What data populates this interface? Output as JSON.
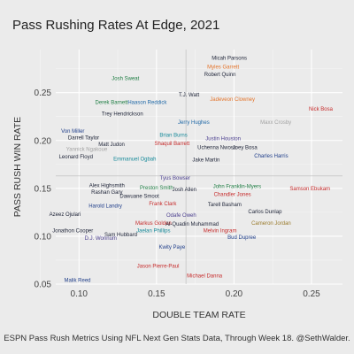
{
  "title": "Pass Rushing Rates At Edge, 2021",
  "caption": "ESPN Pass Rush Metrics Using NFL Next Gen Stats Data, Through Week 18. @SethWalder.",
  "chart_data": {
    "type": "scatter",
    "title": "Pass Rushing Rates At Edge, 2021",
    "xlabel": "DOUBLE TEAM RATE",
    "ylabel": "PASS RUSH WIN RATE",
    "xlim": [
      0.085,
      0.27
    ],
    "ylim": [
      0.05,
      0.295
    ],
    "x_ticks": [
      0.1,
      0.15,
      0.2,
      0.25
    ],
    "x_tick_labels": [
      "0.10",
      "0.15",
      "0.20",
      "0.25"
    ],
    "y_ticks": [
      0.05,
      0.1,
      0.15,
      0.2,
      0.25
    ],
    "y_tick_labels": [
      "0.05",
      "0.10",
      "0.15",
      "0.20",
      "0.25"
    ],
    "grid": true,
    "reference_lines": {
      "x": 0.169,
      "y": 0.163
    },
    "team_colors": {
      "dark": "#1c2236",
      "green": "#1e7d43",
      "blue": "#1d67a6",
      "red": "#c62a2a",
      "orange": "#e4742b",
      "purple": "#4b3f8f",
      "teal": "#178a9a",
      "gray": "#a3a3a3",
      "gold": "#9a7b2c",
      "navy": "#1f3e8a"
    },
    "points": [
      {
        "name": "Micah Parsons",
        "x": 0.197,
        "y": 0.286,
        "color": "#1c2236"
      },
      {
        "name": "Myles Garrett",
        "x": 0.193,
        "y": 0.277,
        "color": "#e4742b"
      },
      {
        "name": "Robert Quinn",
        "x": 0.191,
        "y": 0.269,
        "color": "#1c2236"
      },
      {
        "name": "Josh Sweat",
        "x": 0.13,
        "y": 0.265,
        "color": "#1e7d43"
      },
      {
        "name": "T.J. Watt",
        "x": 0.171,
        "y": 0.248,
        "color": "#1c2236"
      },
      {
        "name": "Jadeveon Clowney",
        "x": 0.199,
        "y": 0.243,
        "color": "#e4742b"
      },
      {
        "name": "Derek Barnett",
        "x": 0.121,
        "y": 0.24,
        "color": "#1e7d43"
      },
      {
        "name": "Haason Reddick",
        "x": 0.144,
        "y": 0.24,
        "color": "#1d67a6"
      },
      {
        "name": "Nick Bosa",
        "x": 0.256,
        "y": 0.233,
        "color": "#c62a2a"
      },
      {
        "name": "Trey Hendrickson",
        "x": 0.128,
        "y": 0.228,
        "color": "#1c2236"
      },
      {
        "name": "Jerry Hughes",
        "x": 0.174,
        "y": 0.219,
        "color": "#1d67a6"
      },
      {
        "name": "Maxx Crosby",
        "x": 0.227,
        "y": 0.219,
        "color": "#a3a3a3"
      },
      {
        "name": "Von Miller",
        "x": 0.096,
        "y": 0.21,
        "color": "#1f3e8a"
      },
      {
        "name": "Brian Burns",
        "x": 0.161,
        "y": 0.206,
        "color": "#178a9a"
      },
      {
        "name": "Darrell Taylor",
        "x": 0.103,
        "y": 0.203,
        "color": "#1c2236"
      },
      {
        "name": "Justin Houston",
        "x": 0.193,
        "y": 0.202,
        "color": "#4b3f8f"
      },
      {
        "name": "Shaquil Barrett",
        "x": 0.16,
        "y": 0.197,
        "color": "#c62a2a"
      },
      {
        "name": "Matt Judon",
        "x": 0.121,
        "y": 0.196,
        "color": "#1c2236"
      },
      {
        "name": "Uchenna Nwosu",
        "x": 0.189,
        "y": 0.193,
        "color": "#1c2236"
      },
      {
        "name": "Joey Bosa",
        "x": 0.207,
        "y": 0.193,
        "color": "#1c2236"
      },
      {
        "name": "Yannick Ngakoue",
        "x": 0.105,
        "y": 0.191,
        "color": "#a3a3a3"
      },
      {
        "name": "Charles Harris",
        "x": 0.224,
        "y": 0.184,
        "color": "#1f3e8a"
      },
      {
        "name": "Leonard Floyd",
        "x": 0.098,
        "y": 0.183,
        "color": "#1c2236"
      },
      {
        "name": "Emmanuel Ogbah",
        "x": 0.136,
        "y": 0.181,
        "color": "#178a9a"
      },
      {
        "name": "Jake Martin",
        "x": 0.182,
        "y": 0.18,
        "color": "#1c2236"
      },
      {
        "name": "Tyus Bowser",
        "x": 0.162,
        "y": 0.161,
        "color": "#4b3f8f"
      },
      {
        "name": "Alex Highsmith",
        "x": 0.118,
        "y": 0.153,
        "color": "#1c2236"
      },
      {
        "name": "Preston Smith",
        "x": 0.15,
        "y": 0.151,
        "color": "#1e7d43"
      },
      {
        "name": "John Franklin-Myers",
        "x": 0.202,
        "y": 0.152,
        "color": "#1e7d43"
      },
      {
        "name": "Samson Ebukam",
        "x": 0.249,
        "y": 0.15,
        "color": "#c62a2a"
      },
      {
        "name": "Josh Allen",
        "x": 0.168,
        "y": 0.149,
        "color": "#1c2236"
      },
      {
        "name": "Rashan Gary",
        "x": 0.118,
        "y": 0.146,
        "color": "#1c2236"
      },
      {
        "name": "Chandler Jones",
        "x": 0.199,
        "y": 0.144,
        "color": "#c62a2a"
      },
      {
        "name": "Dawuane Smoot",
        "x": 0.139,
        "y": 0.142,
        "color": "#1c2236"
      },
      {
        "name": "Frank Clark",
        "x": 0.154,
        "y": 0.134,
        "color": "#c62a2a"
      },
      {
        "name": "Tarell Basham",
        "x": 0.194,
        "y": 0.133,
        "color": "#1c2236"
      },
      {
        "name": "Harold Landry",
        "x": 0.117,
        "y": 0.132,
        "color": "#1f3e8a"
      },
      {
        "name": "Carlos Dunlap",
        "x": 0.22,
        "y": 0.126,
        "color": "#1c2236"
      },
      {
        "name": "Azeez Ojulari",
        "x": 0.091,
        "y": 0.123,
        "color": "#1c2236"
      },
      {
        "name": "Odafe Oweh",
        "x": 0.166,
        "y": 0.122,
        "color": "#4b3f8f"
      },
      {
        "name": "Markus Golden",
        "x": 0.148,
        "y": 0.114,
        "color": "#c62a2a"
      },
      {
        "name": "Al-Quadin Muhammad",
        "x": 0.173,
        "y": 0.113,
        "color": "#1c2236"
      },
      {
        "name": "Cameron Jordan",
        "x": 0.224,
        "y": 0.114,
        "color": "#9a7b2c"
      },
      {
        "name": "Jonathon Cooper",
        "x": 0.096,
        "y": 0.106,
        "color": "#1c2236"
      },
      {
        "name": "Jaelan Phillips",
        "x": 0.148,
        "y": 0.106,
        "color": "#178a9a"
      },
      {
        "name": "Melvin Ingram",
        "x": 0.191,
        "y": 0.106,
        "color": "#c62a2a"
      },
      {
        "name": "Sam Hubbard",
        "x": 0.127,
        "y": 0.102,
        "color": "#1c2236"
      },
      {
        "name": "Bud Dupree",
        "x": 0.205,
        "y": 0.099,
        "color": "#1f3e8a"
      },
      {
        "name": "D.J. Wonnum",
        "x": 0.114,
        "y": 0.098,
        "color": "#4b3f8f"
      },
      {
        "name": "Kwity Paye",
        "x": 0.16,
        "y": 0.089,
        "color": "#1f3e8a"
      },
      {
        "name": "Jason Pierre-Paul",
        "x": 0.151,
        "y": 0.069,
        "color": "#c62a2a"
      },
      {
        "name": "Michael Danna",
        "x": 0.181,
        "y": 0.059,
        "color": "#c62a2a"
      },
      {
        "name": "Malik Reed",
        "x": 0.099,
        "y": 0.054,
        "color": "#1f3e8a"
      }
    ]
  }
}
